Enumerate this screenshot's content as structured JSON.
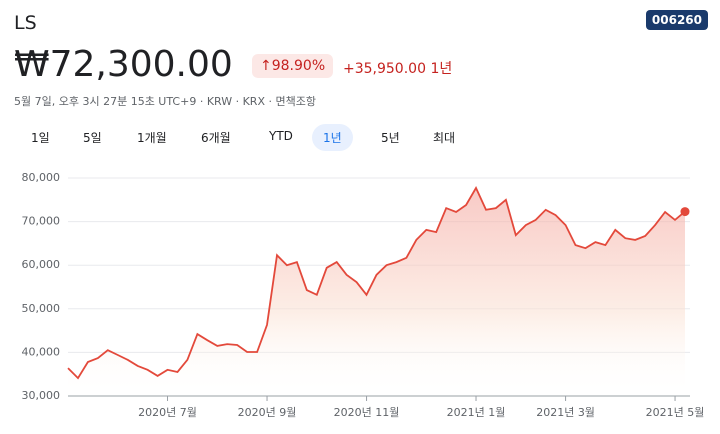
{
  "header": {
    "ticker": "LS",
    "code": "006260",
    "price": "₩72,300.00",
    "change_pct": "98.90%",
    "change_abs": "+35,950.00",
    "change_period": "1년",
    "meta": "5월 7일, 오후 3시 27분 15초 UTC+9 · KRW · KRX · 면책조항"
  },
  "tabs": [
    "1일",
    "5일",
    "1개월",
    "6개월",
    "YTD",
    "1년",
    "5년",
    "최대"
  ],
  "chart_data": {
    "type": "line",
    "color": "#e3493b",
    "grid": true,
    "categories": [
      null,
      null,
      null,
      null,
      null,
      null,
      null,
      null,
      null,
      null,
      "2020년 7월",
      null,
      null,
      null,
      null,
      null,
      null,
      null,
      null,
      null,
      "2020년 9월",
      null,
      null,
      null,
      null,
      null,
      null,
      null,
      null,
      null,
      "2020년 11월",
      null,
      null,
      null,
      null,
      null,
      null,
      null,
      null,
      null,
      null,
      "2021년 1월",
      null,
      null,
      null,
      null,
      null,
      null,
      null,
      null,
      "2021년 3월",
      null,
      null,
      null,
      null,
      null,
      null,
      null,
      null,
      null,
      null,
      "2021년 5월",
      null
    ],
    "values": [
      36400,
      34100,
      37800,
      38700,
      40500,
      39400,
      38300,
      36900,
      36000,
      34600,
      36000,
      35500,
      38300,
      44200,
      42800,
      41500,
      41900,
      41700,
      40100,
      40100,
      46300,
      62300,
      60000,
      60700,
      54300,
      53200,
      59400,
      60700,
      57800,
      56100,
      53200,
      57800,
      60000,
      60700,
      61700,
      65800,
      68100,
      67600,
      73100,
      72200,
      73800,
      77700,
      72700,
      73100,
      75000,
      66900,
      69200,
      70400,
      72700,
      71500,
      69200,
      64600,
      63900,
      65300,
      64600,
      68100,
      66200,
      65800,
      66700,
      69200,
      72200,
      70400,
      72300
    ],
    "ylim": [
      30000,
      80000
    ],
    "yticks": [
      {
        "value": 30000,
        "label": "30,000"
      },
      {
        "value": 40000,
        "label": "40,000"
      },
      {
        "value": 50000,
        "label": "50,000"
      },
      {
        "value": 60000,
        "label": "60,000"
      },
      {
        "value": 70000,
        "label": "70,000"
      },
      {
        "value": 80000,
        "label": "80,000"
      }
    ]
  }
}
